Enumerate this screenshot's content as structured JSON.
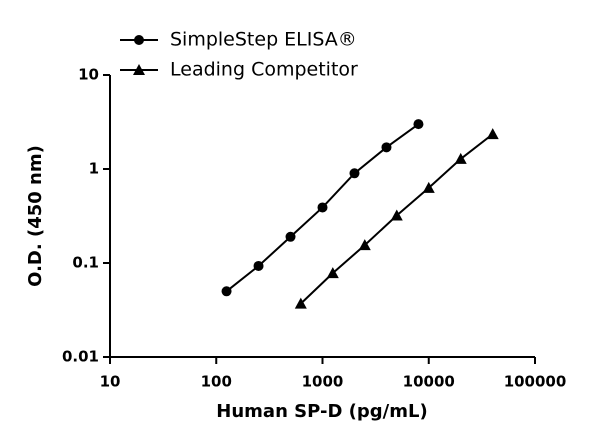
{
  "chart_data": {
    "type": "line",
    "x_label": "Human SP-D (pg/mL)",
    "y_label": "O.D. (450 nm)",
    "xscale": "log",
    "yscale": "log",
    "xlim": [
      10,
      100000
    ],
    "xticks": [
      10,
      100,
      1000,
      10000,
      100000
    ],
    "ylim": [
      0.01,
      10
    ],
    "yticks": [
      0.01,
      0.1,
      1,
      10
    ],
    "legend": "top-left",
    "series": [
      {
        "name": "SimpleStep ELISA®",
        "color": "#000000",
        "marker": "circle",
        "x": [
          125,
          250,
          500,
          1000,
          2000,
          4000,
          8000
        ],
        "values": [
          0.05,
          0.093,
          0.19,
          0.39,
          0.9,
          1.7,
          3.0
        ]
      },
      {
        "name": "Leading Competitor",
        "color": "#000000",
        "marker": "triangle",
        "x": [
          625,
          1250,
          2500,
          5000,
          10000,
          20000,
          40000
        ],
        "values": [
          0.037,
          0.078,
          0.155,
          0.32,
          0.63,
          1.28,
          2.35
        ]
      }
    ]
  }
}
